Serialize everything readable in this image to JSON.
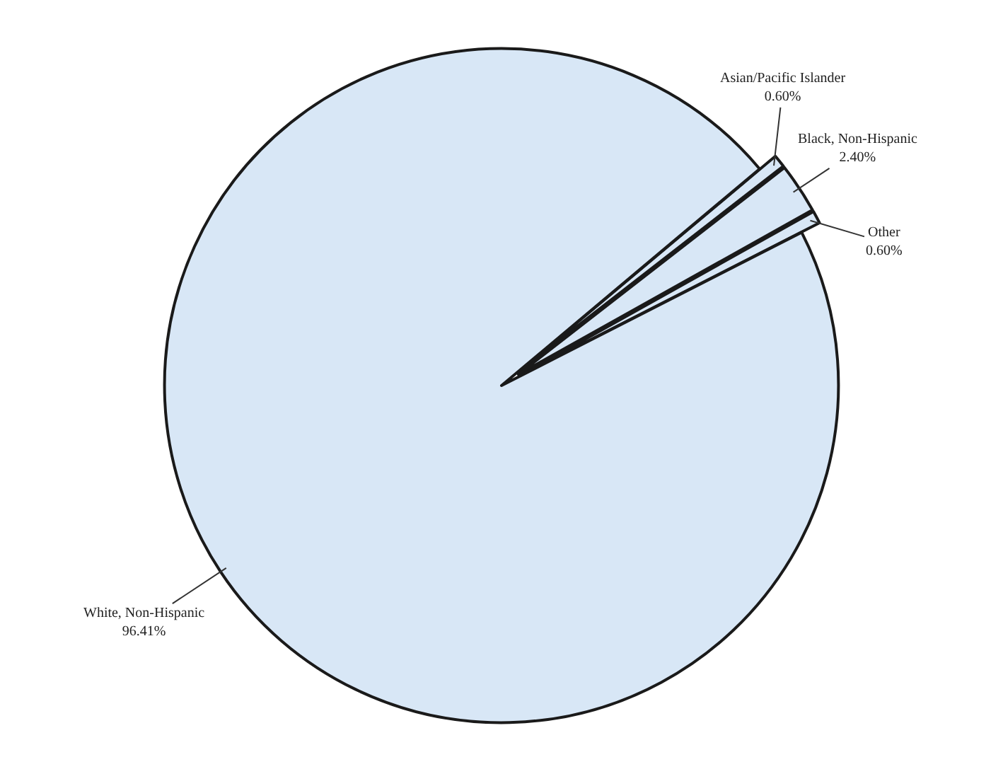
{
  "chart_data": {
    "type": "pie",
    "categories": [
      "Asian/Pacific Islander",
      "Black, Non-Hispanic",
      "Other",
      "White, Non-Hispanic"
    ],
    "values": [
      0.6,
      2.4,
      0.6,
      96.41
    ],
    "value_labels": [
      "0.60%",
      "2.40%",
      "0.60%",
      "96.41%"
    ],
    "colors": [
      "#d8e7f6",
      "#d8e7f6",
      "#d8e7f6",
      "#d8e7f6"
    ],
    "legend": false
  }
}
